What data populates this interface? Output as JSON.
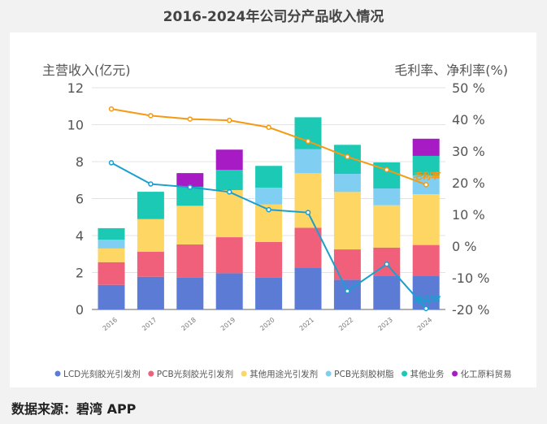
{
  "title": "2016-2024年公司分产品收入情况",
  "source": "数据来源：碧湾 APP",
  "watermark": "碧湾App",
  "chart_data": {
    "type": "bar",
    "stacked": true,
    "categories": [
      "2016",
      "2017",
      "2018",
      "2019",
      "2020",
      "2021",
      "2022",
      "2023",
      "2024"
    ],
    "ylabel": "主营收入(亿元)",
    "ylabel_right": "毛利率、净利率(%)",
    "ylim": [
      0,
      12
    ],
    "yticks": [
      "0",
      "2",
      "4",
      "6",
      "8",
      "10",
      "12"
    ],
    "ylim_right": [
      -20,
      50
    ],
    "yticks_right": [
      "-20 %",
      "-10 %",
      "0 %",
      "10 %",
      "20 %",
      "30 %",
      "40 %",
      "50 %"
    ],
    "grid": true,
    "legend_position": "bottom",
    "series": [
      {
        "name": "LCD光刻胶光引发剂",
        "color": "#5b7bd5",
        "values": [
          1.33,
          1.77,
          1.73,
          1.96,
          1.73,
          2.27,
          1.61,
          1.83,
          1.83
        ]
      },
      {
        "name": "PCB光刻胶光引发剂",
        "color": "#f0607a",
        "values": [
          1.23,
          1.35,
          1.79,
          1.95,
          1.92,
          2.15,
          1.64,
          1.52,
          1.66
        ]
      },
      {
        "name": "其他用途光引发剂",
        "color": "#fdd663",
        "values": [
          0.74,
          1.77,
          2.09,
          2.55,
          2.03,
          2.95,
          3.11,
          2.29,
          2.75
        ]
      },
      {
        "name": "PCB光刻胶树脂",
        "color": "#80cff2",
        "values": [
          0.48,
          0,
          0,
          0,
          0.91,
          1.3,
          0.98,
          0.91,
          1.0
        ]
      },
      {
        "name": "其他业务",
        "color": "#1cc9b4",
        "values": [
          0.62,
          1.48,
          1.03,
          1.09,
          1.18,
          1.73,
          1.57,
          1.41,
          1.07
        ]
      },
      {
        "name": "化工原料贸易",
        "color": "#a71bc4",
        "values": [
          0,
          0,
          0.74,
          1.1,
          0,
          0,
          0,
          0,
          0.93
        ]
      }
    ],
    "lines": [
      {
        "name": "毛利率",
        "color": "#f59a12",
        "values": [
          43.3,
          41.2,
          40.1,
          39.7,
          37.5,
          33.1,
          28.2,
          24.1,
          19.4
        ]
      },
      {
        "name": "净利率",
        "color": "#1a9fd0",
        "values": [
          26.3,
          19.6,
          18.6,
          17.1,
          11.5,
          10.6,
          -14.2,
          -5.7,
          -19.7
        ]
      }
    ]
  }
}
